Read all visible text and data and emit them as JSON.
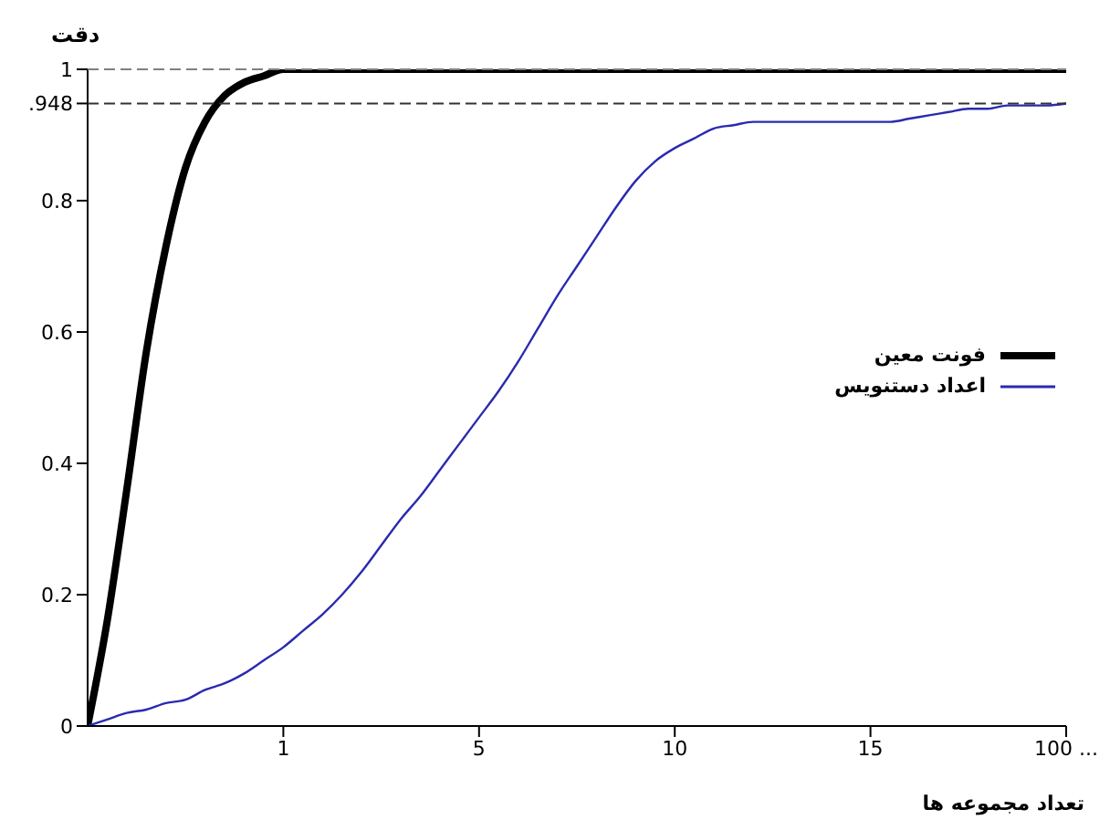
{
  "chart_data": {
    "type": "line",
    "ylabel": "دقت",
    "xlabel": "تعداد مجموعه ها",
    "categories": [
      null,
      null,
      null,
      null,
      null,
      null,
      null,
      null,
      null,
      null,
      "1",
      null,
      null,
      null,
      null,
      null,
      null,
      null,
      null,
      null,
      "5",
      null,
      null,
      null,
      null,
      null,
      null,
      null,
      null,
      null,
      "10",
      null,
      null,
      null,
      null,
      null,
      null,
      null,
      null,
      null,
      "15",
      null,
      null,
      null,
      null,
      null,
      null,
      null,
      null,
      null,
      "100 ..."
    ],
    "ylim": [
      0,
      1
    ],
    "yticks": [
      0,
      0.2,
      0.4,
      0.6,
      0.8,
      {
        "value": 0.948,
        "label": ".948"
      },
      1
    ],
    "series": [
      {
        "name": "فونت معین",
        "color": "#000000",
        "values": [
          0,
          0.16,
          0.36,
          0.57,
          0.73,
          0.85,
          0.92,
          0.96,
          0.98,
          0.99,
          1,
          1,
          1,
          1,
          1,
          1,
          1,
          1,
          1,
          1,
          1,
          1,
          1,
          1,
          1,
          1,
          1,
          1,
          1,
          1,
          1,
          1,
          1,
          1,
          1,
          1,
          1,
          1,
          1,
          1,
          1,
          1,
          1,
          1,
          1,
          1,
          1,
          1,
          1,
          1,
          1
        ]
      },
      {
        "name": "اعداد دستنویس",
        "color": "#2a2ab0",
        "values": [
          0,
          0.01,
          0.02,
          0.025,
          0.035,
          0.04,
          0.055,
          0.065,
          0.08,
          0.1,
          0.12,
          0.145,
          0.17,
          0.2,
          0.235,
          0.275,
          0.315,
          0.35,
          0.39,
          0.43,
          0.47,
          0.51,
          0.555,
          0.605,
          0.655,
          0.7,
          0.745,
          0.79,
          0.83,
          0.86,
          0.88,
          0.895,
          0.91,
          0.915,
          0.92,
          0.92,
          0.92,
          0.92,
          0.92,
          0.92,
          0.92,
          0.92,
          0.925,
          0.93,
          0.935,
          0.94,
          0.94,
          0.945,
          0.945,
          0.945,
          0.948
        ]
      }
    ],
    "ref_lines": [
      {
        "axis": "y",
        "value": 1,
        "color": "#808080",
        "line_style": "dashed"
      },
      {
        "axis": "y",
        "value": 0.948,
        "color": "#333333",
        "line_style": "dashed"
      }
    ],
    "legend": "right",
    "line_style": "solid"
  }
}
